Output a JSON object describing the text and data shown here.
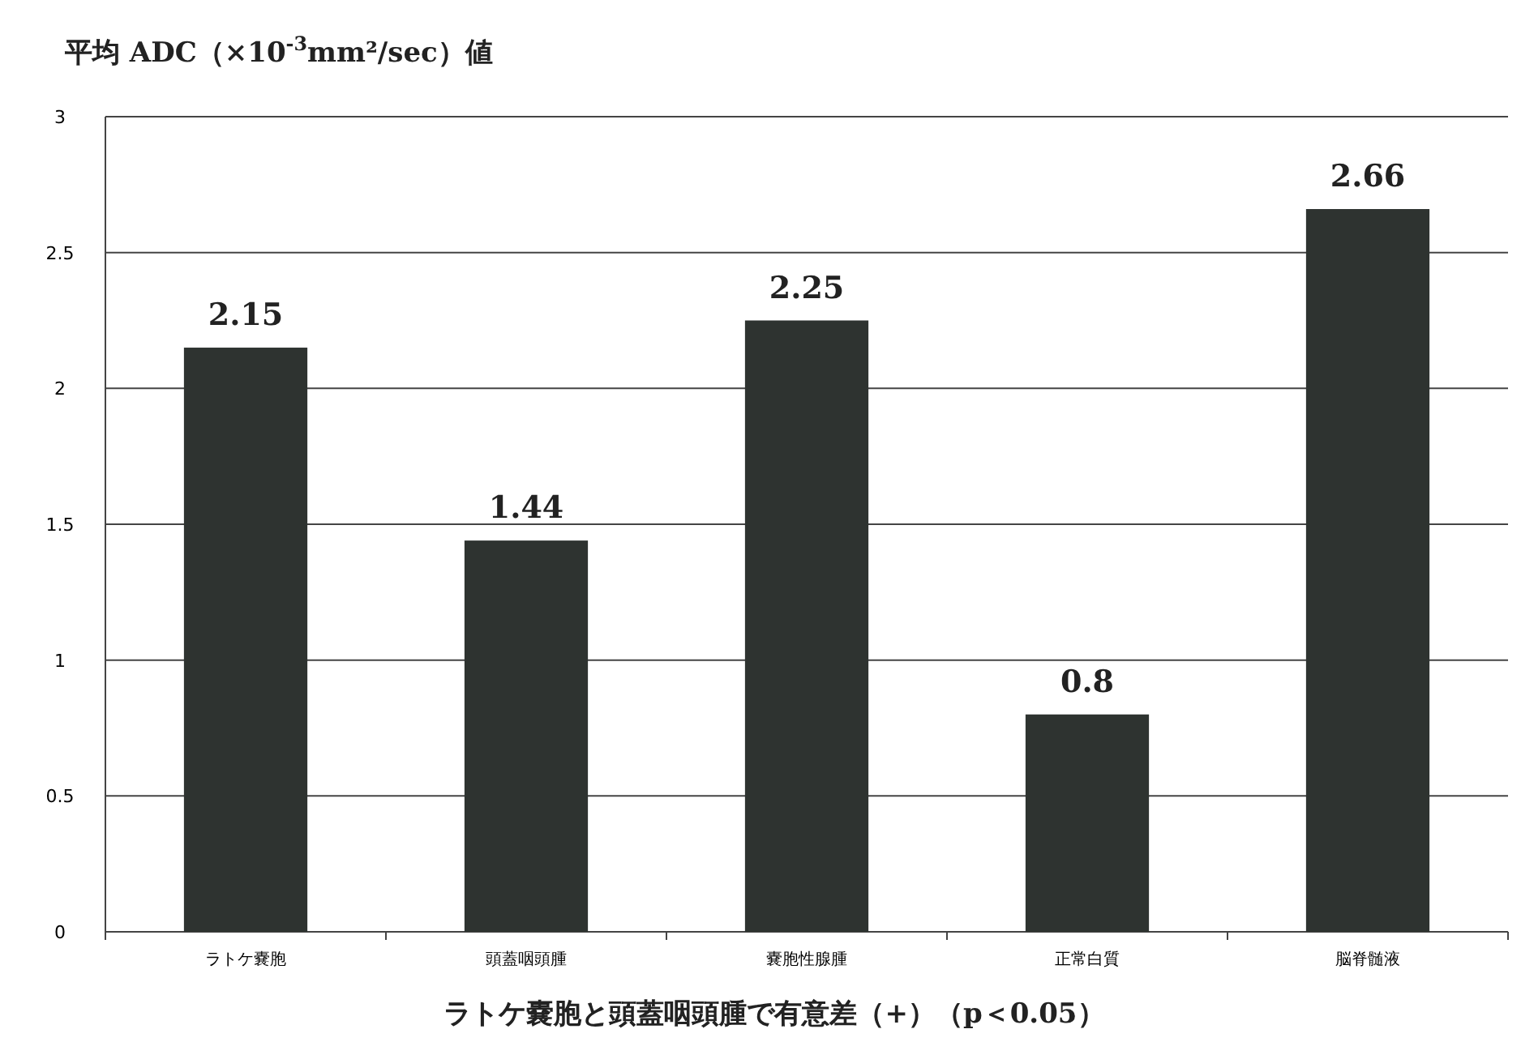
{
  "chart_data": {
    "type": "bar",
    "title": "平均 ADC（×10$^{-3}$mm²/sec）値",
    "categories": [
      "ラトケ嚢胞",
      "頭蓋咽頭腫",
      "嚢胞性腺腫",
      "正常白質",
      "脳脊髄液"
    ],
    "values": [
      2.15,
      1.44,
      2.25,
      0.8,
      2.66
    ],
    "color": "#2e3330",
    "ylim": [
      0,
      3
    ],
    "yticks": [
      0,
      0.5,
      1,
      1.5,
      2,
      2.5,
      3
    ],
    "grid": "y",
    "data_labels": true,
    "annotations": [
      "ラトケ嚢胞と頭蓋咽頭腫で有意差（+）（p＜0.05）"
    ]
  }
}
